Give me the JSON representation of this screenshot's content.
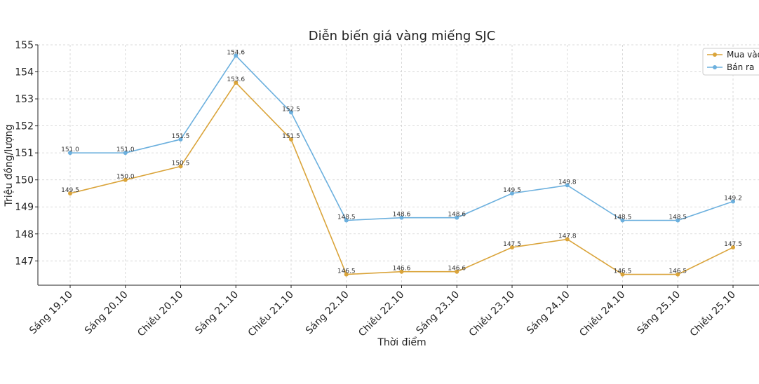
{
  "chart_data": {
    "type": "line",
    "title": "Diễn biến giá vàng miếng SJC",
    "xlabel": "Thời điểm",
    "ylabel": "Triệu đồng/lượng",
    "categories": [
      "Sáng 19.10",
      "Sáng 20.10",
      "Chiều 20.10",
      "Sáng 21.10",
      "Chiều 21.10",
      "Sáng 22.10",
      "Chiều 22.10",
      "Sáng 23.10",
      "Chiều 23.10",
      "Sáng 24.10",
      "Chiều 24.10",
      "Sáng 25.10",
      "Chiều 25.10"
    ],
    "series": [
      {
        "name": "Mua vào",
        "color": "#DAA43A",
        "values": [
          149.5,
          150.0,
          150.5,
          153.6,
          151.5,
          146.5,
          146.6,
          146.6,
          147.5,
          147.8,
          146.5,
          146.5,
          147.5
        ],
        "labels": [
          "149.5",
          "150.0",
          "150.5",
          "153.6",
          "151.5",
          "146.5",
          "146.6",
          "146.6",
          "147.5",
          "147.8",
          "146.5",
          "146.5",
          "147.5"
        ]
      },
      {
        "name": "Bán ra",
        "color": "#6CB0DE",
        "values": [
          151.0,
          151.0,
          151.5,
          154.6,
          152.5,
          148.5,
          148.6,
          148.6,
          149.5,
          149.8,
          148.5,
          148.5,
          149.2
        ],
        "labels": [
          "151.0",
          "151.0",
          "151.5",
          "154.6",
          "152.5",
          "148.5",
          "148.6",
          "148.6",
          "149.5",
          "149.8",
          "148.5",
          "148.5",
          "149.2"
        ]
      }
    ],
    "yticks": [
      "147",
      "148",
      "149",
      "150",
      "151",
      "152",
      "153",
      "154",
      "155"
    ],
    "ylim": [
      146.1,
      155
    ],
    "grid": true,
    "legend_position": "top-right"
  }
}
